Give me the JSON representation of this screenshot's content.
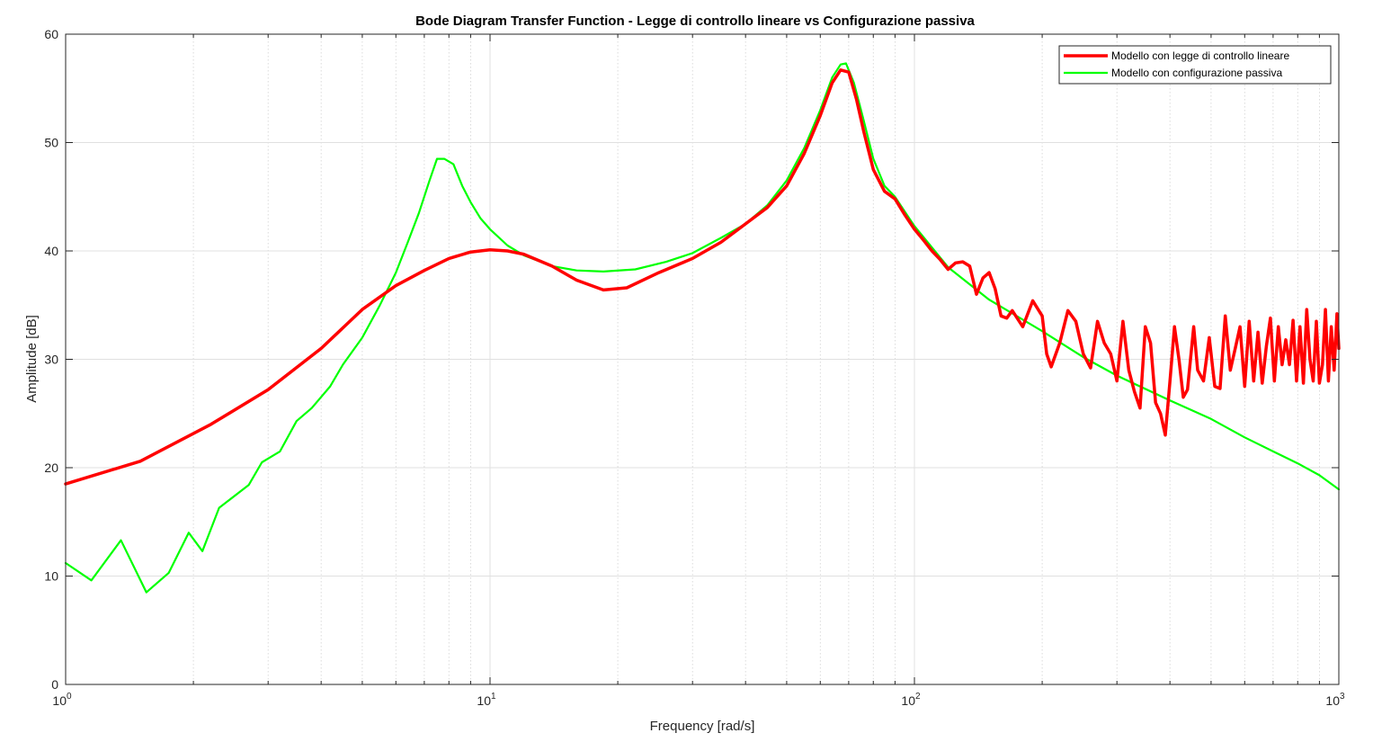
{
  "chart_data": {
    "type": "line",
    "title": "Bode Diagram Transfer Function - Legge di controllo lineare vs Configurazione passiva",
    "xlabel": "Frequency [rad/s]",
    "ylabel": "Amplitude [dB]",
    "xscale": "log",
    "xlim": [
      1,
      1000
    ],
    "ylim": [
      0,
      60
    ],
    "x_ticks": [
      {
        "value": 1,
        "base": "10",
        "exp": "0"
      },
      {
        "value": 10,
        "base": "10",
        "exp": "1"
      },
      {
        "value": 100,
        "base": "10",
        "exp": "2"
      },
      {
        "value": 1000,
        "base": "10",
        "exp": "3"
      }
    ],
    "y_ticks": [
      0,
      10,
      20,
      30,
      40,
      50,
      60
    ],
    "y_tick_labels": [
      "0",
      "10",
      "20",
      "30",
      "40",
      "50",
      "60"
    ],
    "grid": true,
    "legend_position": "top-right",
    "series": [
      {
        "name": "Modello con legge di controllo lineare",
        "color": "#ff0000",
        "line_width": 3.5,
        "points": [
          [
            1,
            18.5
          ],
          [
            1.5,
            20.6
          ],
          [
            2.2,
            24
          ],
          [
            3,
            27.2
          ],
          [
            4,
            31
          ],
          [
            5,
            34.6
          ],
          [
            6,
            36.8
          ],
          [
            7,
            38.2
          ],
          [
            8,
            39.3
          ],
          [
            9,
            39.9
          ],
          [
            10,
            40.1
          ],
          [
            11,
            40
          ],
          [
            12,
            39.7
          ],
          [
            14,
            38.6
          ],
          [
            16,
            37.3
          ],
          [
            18.5,
            36.4
          ],
          [
            21,
            36.6
          ],
          [
            25,
            38
          ],
          [
            30,
            39.3
          ],
          [
            35,
            40.8
          ],
          [
            40,
            42.5
          ],
          [
            45,
            44
          ],
          [
            50,
            46
          ],
          [
            55,
            49
          ],
          [
            60,
            52.5
          ],
          [
            64,
            55.5
          ],
          [
            67,
            56.7
          ],
          [
            70,
            56.5
          ],
          [
            73,
            54
          ],
          [
            76,
            51
          ],
          [
            80,
            47.5
          ],
          [
            85,
            45.5
          ],
          [
            90,
            44.8
          ],
          [
            95,
            43.3
          ],
          [
            100,
            42
          ],
          [
            105,
            41
          ],
          [
            110,
            40
          ],
          [
            115,
            39.2
          ],
          [
            120,
            38.3
          ],
          [
            125,
            38.9
          ],
          [
            130,
            39
          ],
          [
            135,
            38.6
          ],
          [
            140,
            36
          ],
          [
            145,
            37.5
          ],
          [
            150,
            38
          ],
          [
            155,
            36.5
          ],
          [
            160,
            34
          ],
          [
            165,
            33.8
          ],
          [
            170,
            34.5
          ],
          [
            180,
            33
          ],
          [
            190,
            35.4
          ],
          [
            200,
            34
          ],
          [
            205,
            30.5
          ],
          [
            210,
            29.3
          ],
          [
            220,
            31.5
          ],
          [
            230,
            34.5
          ],
          [
            240,
            33.5
          ],
          [
            250,
            30.5
          ],
          [
            260,
            29.2
          ],
          [
            270,
            33.5
          ],
          [
            280,
            31.5
          ],
          [
            290,
            30.5
          ],
          [
            300,
            28
          ],
          [
            310,
            33.5
          ],
          [
            320,
            29
          ],
          [
            330,
            27
          ],
          [
            340,
            25.5
          ],
          [
            350,
            33
          ],
          [
            360,
            31.5
          ],
          [
            370,
            26
          ],
          [
            380,
            25
          ],
          [
            390,
            23
          ],
          [
            400,
            28
          ],
          [
            410,
            33
          ],
          [
            420,
            30
          ],
          [
            430,
            26.5
          ],
          [
            440,
            27.2
          ],
          [
            455,
            33
          ],
          [
            465,
            29
          ],
          [
            480,
            28
          ],
          [
            495,
            32
          ],
          [
            510,
            27.5
          ],
          [
            525,
            27.3
          ],
          [
            540,
            34
          ],
          [
            555,
            29
          ],
          [
            570,
            31
          ],
          [
            585,
            33
          ],
          [
            600,
            27.5
          ],
          [
            615,
            33.5
          ],
          [
            630,
            28
          ],
          [
            645,
            32.5
          ],
          [
            660,
            27.8
          ],
          [
            675,
            31.2
          ],
          [
            690,
            33.8
          ],
          [
            705,
            28
          ],
          [
            720,
            33
          ],
          [
            735,
            29.5
          ],
          [
            750,
            31.8
          ],
          [
            765,
            29.5
          ],
          [
            780,
            33.6
          ],
          [
            795,
            28
          ],
          [
            810,
            33
          ],
          [
            825,
            27.8
          ],
          [
            840,
            34.6
          ],
          [
            855,
            30
          ],
          [
            870,
            28
          ],
          [
            885,
            33.5
          ],
          [
            900,
            27.8
          ],
          [
            915,
            29.5
          ],
          [
            930,
            34.6
          ],
          [
            945,
            28
          ],
          [
            960,
            33
          ],
          [
            975,
            29
          ],
          [
            990,
            34.2
          ],
          [
            1000,
            31
          ]
        ]
      },
      {
        "name": "Modello con configurazione passiva",
        "color": "#00ff00",
        "line_width": 2.2,
        "points": [
          [
            1,
            11.2
          ],
          [
            1.15,
            9.6
          ],
          [
            1.35,
            13.3
          ],
          [
            1.55,
            8.5
          ],
          [
            1.75,
            10.3
          ],
          [
            1.95,
            14
          ],
          [
            2.1,
            12.3
          ],
          [
            2.3,
            16.3
          ],
          [
            2.7,
            18.4
          ],
          [
            2.9,
            20.5
          ],
          [
            3.2,
            21.5
          ],
          [
            3.5,
            24.3
          ],
          [
            3.8,
            25.5
          ],
          [
            4.2,
            27.5
          ],
          [
            4.5,
            29.5
          ],
          [
            5,
            32
          ],
          [
            5.5,
            35
          ],
          [
            6,
            38
          ],
          [
            6.4,
            40.8
          ],
          [
            6.8,
            43.5
          ],
          [
            7.2,
            46.5
          ],
          [
            7.5,
            48.5
          ],
          [
            7.8,
            48.5
          ],
          [
            8.2,
            48
          ],
          [
            8.6,
            46
          ],
          [
            9,
            44.5
          ],
          [
            9.5,
            43
          ],
          [
            10,
            42
          ],
          [
            11,
            40.5
          ],
          [
            12,
            39.6
          ],
          [
            14,
            38.6
          ],
          [
            16,
            38.2
          ],
          [
            18.5,
            38.1
          ],
          [
            22,
            38.3
          ],
          [
            26,
            39
          ],
          [
            30,
            39.8
          ],
          [
            35,
            41.2
          ],
          [
            40,
            42.5
          ],
          [
            45,
            44.2
          ],
          [
            50,
            46.5
          ],
          [
            55,
            49.5
          ],
          [
            60,
            53
          ],
          [
            64,
            56
          ],
          [
            67,
            57.2
          ],
          [
            69,
            57.3
          ],
          [
            72,
            55.5
          ],
          [
            76,
            52
          ],
          [
            80,
            48.5
          ],
          [
            85,
            46
          ],
          [
            90,
            45
          ],
          [
            95,
            43.6
          ],
          [
            100,
            42.3
          ],
          [
            120,
            38.5
          ],
          [
            150,
            35.5
          ],
          [
            200,
            32.6
          ],
          [
            250,
            30.2
          ],
          [
            300,
            28.5
          ],
          [
            400,
            26.2
          ],
          [
            500,
            24.5
          ],
          [
            600,
            22.8
          ],
          [
            700,
            21.5
          ],
          [
            800,
            20.4
          ],
          [
            900,
            19.3
          ],
          [
            1000,
            18
          ]
        ]
      }
    ]
  }
}
